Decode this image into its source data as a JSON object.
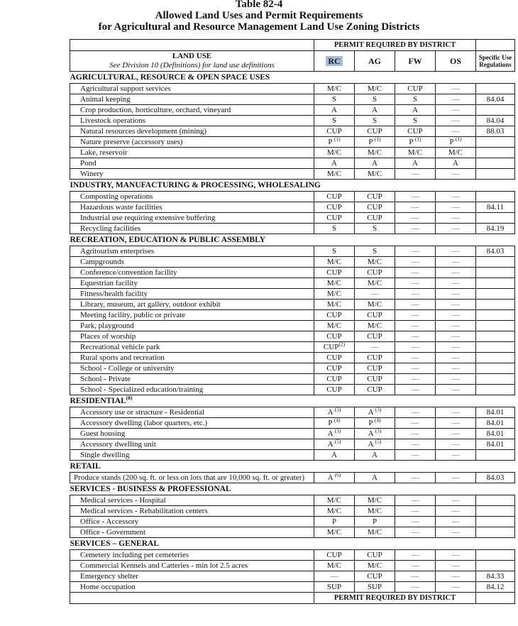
{
  "page": {
    "title_lines": [
      "Table 82-4",
      "Allowed Land Uses and Permit Requirements",
      "for Agricultural and Resource Management Land Use Zoning Districts"
    ]
  },
  "colors": {
    "highlight": "#a6bed4",
    "dash": "#616161"
  },
  "table": {
    "permit_banner": "PERMIT REQUIRED BY DISTRICT",
    "land_use_header": "LAND USE",
    "land_use_subheader": "See Division 10 (Definitions) for land use definitions",
    "district_columns": [
      "RC",
      "AG",
      "FW",
      "OS"
    ],
    "highlighted_district": "RC",
    "specific_use_header": "Specific Use Regulations",
    "footer_banner": "PERMIT REQUIRED BY DISTRICT",
    "sections": [
      {
        "title": "AGRICULTURAL, RESOURCE & OPEN SPACE USES",
        "rows": [
          {
            "use": "Agricultural support services",
            "permits": [
              "M/C",
              "M/C",
              "CUP",
              "—"
            ],
            "reg": ""
          },
          {
            "use": "Animal keeping",
            "permits": [
              "S",
              "S",
              "S",
              "—"
            ],
            "reg": "84.04"
          },
          {
            "use": "Crop production, horticulture, orchard, vineyard",
            "permits": [
              "A",
              "A",
              "A",
              "—"
            ],
            "reg": ""
          },
          {
            "use": "Livestock operations",
            "permits": [
              "S",
              "S",
              "S",
              "—"
            ],
            "reg": "84.04"
          },
          {
            "use": "Natural resources development (mining)",
            "permits": [
              "CUP",
              "CUP",
              "CUP",
              "—"
            ],
            "reg": "88.03"
          },
          {
            "use": "Nature preserve (accessory uses)",
            "permits": [
              "P ^(1)",
              "P ^(1)",
              "P ^(1)",
              "P ^(1)"
            ],
            "reg": ""
          },
          {
            "use": "Lake, reservoir",
            "permits": [
              "M/C",
              "M/C",
              "M/C",
              "M/C"
            ],
            "reg": ""
          },
          {
            "use": "Pond",
            "permits": [
              "A",
              "A",
              "A",
              "A"
            ],
            "reg": ""
          },
          {
            "use": "Winery",
            "permits": [
              "M/C",
              "M/C",
              "—",
              "—"
            ],
            "reg": ""
          }
        ]
      },
      {
        "title": "INDUSTRY, MANUFACTURING & PROCESSING, WHOLESALING",
        "rows": [
          {
            "use": "Composting operations",
            "permits": [
              "CUP",
              "CUP",
              "—",
              "—"
            ],
            "reg": ""
          },
          {
            "use": "Hazardous waste facilities",
            "permits": [
              "CUP",
              "CUP",
              "—",
              "—"
            ],
            "reg": "84.11"
          },
          {
            "use": "Industrial use requiring extensive buffering",
            "permits": [
              "CUP",
              "CUP",
              "—",
              "—"
            ],
            "reg": ""
          },
          {
            "use": "Recycling facilities",
            "permits": [
              "S",
              "S",
              "—",
              "—"
            ],
            "reg": "84.19"
          }
        ]
      },
      {
        "title": "RECREATION, EDUCATION & PUBLIC ASSEMBLY",
        "rows": [
          {
            "use": "Agritourism enterprises",
            "permits": [
              "S",
              "S",
              "—",
              "—"
            ],
            "reg": "84.03"
          },
          {
            "use": "Campgrounds",
            "permits": [
              "M/C",
              "M/C",
              "—",
              "—"
            ],
            "reg": ""
          },
          {
            "use": "Conference/convention facility",
            "permits": [
              "CUP",
              "CUP",
              "—",
              "—"
            ],
            "reg": ""
          },
          {
            "use": "Equestrian facility",
            "permits": [
              "M/C",
              "M/C",
              "—",
              "—"
            ],
            "reg": ""
          },
          {
            "use": "Fitness/health facility",
            "permits": [
              "M/C",
              "—",
              "—",
              "—"
            ],
            "reg": ""
          },
          {
            "use": "Library, museum, art gallery, outdoor exhibit",
            "permits": [
              "M/C",
              "M/C",
              "—",
              "—"
            ],
            "reg": ""
          },
          {
            "use": "Meeting facility, public or private",
            "permits": [
              "CUP",
              "CUP",
              "—",
              "—"
            ],
            "reg": ""
          },
          {
            "use": "Park, playground",
            "permits": [
              "M/C",
              "M/C",
              "—",
              "—"
            ],
            "reg": ""
          },
          {
            "use": "Places of worship",
            "permits": [
              "CUP",
              "CUP",
              "—",
              "—"
            ],
            "reg": ""
          },
          {
            "use": "Recreational vehicle park",
            "permits": [
              "CUP^(2)",
              "—",
              "—",
              "—"
            ],
            "reg": ""
          },
          {
            "use": "Rural sports and recreation",
            "permits": [
              "CUP",
              "CUP",
              "—",
              "—"
            ],
            "reg": ""
          },
          {
            "use": "School - College or university",
            "permits": [
              "CUP",
              "CUP",
              "—",
              "—"
            ],
            "reg": ""
          },
          {
            "use": "School - Private",
            "permits": [
              "CUP",
              "CUP",
              "—",
              "—"
            ],
            "reg": ""
          },
          {
            "use": "School - Specialized education/training",
            "permits": [
              "CUP",
              "CUP",
              "—",
              "—"
            ],
            "reg": ""
          }
        ]
      },
      {
        "title": "RESIDENTIAL^(8)",
        "rows": [
          {
            "use": "Accessory use or structure - Residential",
            "permits": [
              "A ^(3)",
              "A ^(3)",
              "—",
              "—"
            ],
            "reg": "84.01"
          },
          {
            "use": "Accessory dwelling (labor quarters, etc.)",
            "permits": [
              "P ^(4)",
              "P ^(4)",
              "—",
              "—"
            ],
            "reg": "84.01"
          },
          {
            "use": "Guest housing",
            "permits": [
              "A ^(3)",
              "A ^(3)",
              "—",
              "—"
            ],
            "reg": "84.01"
          },
          {
            "use": "Accessory dwelling unit",
            "permits": [
              "A ^(5)",
              "A ^(5)",
              "—",
              "—"
            ],
            "reg": "84.01"
          },
          {
            "use": "Single dwelling",
            "permits": [
              "A",
              "A",
              "—",
              "—"
            ],
            "reg": ""
          }
        ]
      },
      {
        "title": "RETAIL",
        "rows": [
          {
            "use": "Produce stands (200 sq. ft. or less on lots that are 10,000 sq. ft. or greater)",
            "permits": [
              "A ^(6)",
              "A",
              "—",
              "—"
            ],
            "reg": "84.03"
          }
        ]
      },
      {
        "title": "SERVICES - BUSINESS & PROFESSIONAL",
        "rows": [
          {
            "use": "Medical services - Hospital",
            "permits": [
              "M/C",
              "M/C",
              "—",
              "—"
            ],
            "reg": ""
          },
          {
            "use": "Medical services - Rehabilitation centers",
            "permits": [
              "M/C",
              "M/C",
              "—",
              "—"
            ],
            "reg": ""
          },
          {
            "use": "Office - Accessory",
            "permits": [
              "P",
              "P",
              "—",
              "—"
            ],
            "reg": ""
          },
          {
            "use": "Office - Government",
            "permits": [
              "M/C",
              "M/C",
              "—",
              "—"
            ],
            "reg": ""
          }
        ]
      },
      {
        "title": "SERVICES – GENERAL",
        "rows": [
          {
            "use": "Cemetery including pet cemeteries",
            "permits": [
              "CUP",
              "CUP",
              "—",
              "—"
            ],
            "reg": ""
          },
          {
            "use": "Commercial Kennels and Catteries - min lot 2.5 acres",
            "permits": [
              "M/C",
              "M/C",
              "—",
              "—"
            ],
            "reg": ""
          },
          {
            "use": "Emergency shelter",
            "permits": [
              "—",
              "CUP",
              "—",
              "—"
            ],
            "reg": "84.33"
          },
          {
            "use": "Home occupation",
            "permits": [
              "SUP",
              "SUP",
              "—",
              "—"
            ],
            "reg": "84.12"
          }
        ]
      }
    ]
  }
}
